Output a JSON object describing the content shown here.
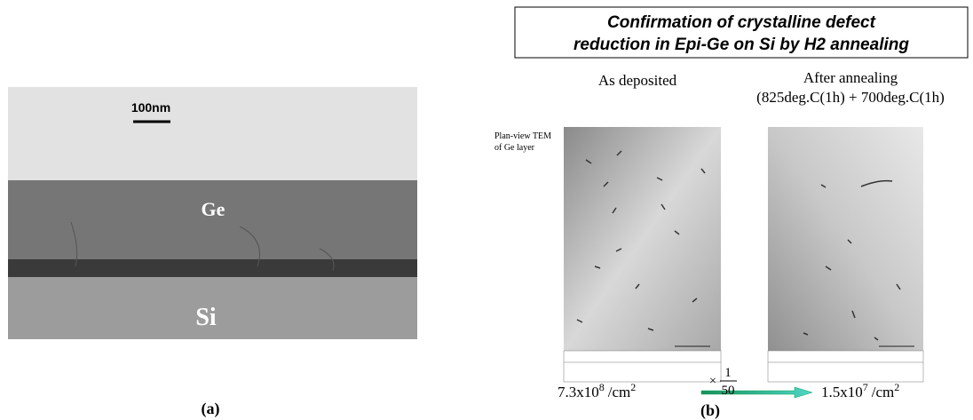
{
  "panel_a": {
    "scale_bar": "100nm",
    "layer_top": "Ge",
    "layer_bottom": "Si",
    "label": "(a)"
  },
  "panel_b": {
    "title_lines": [
      "Confirmation of crystalline defect",
      "reduction in Epi-Ge on Si by H2 annealing"
    ],
    "side_label_lines": [
      "Plan-view TEM",
      "of Ge layer"
    ],
    "columns": [
      {
        "heading": "As deposited",
        "density": {
          "mantissa": "7.3x10",
          "exponent": "8",
          "unit": "/cm",
          "unit_exponent": "2"
        }
      },
      {
        "heading": "After annealing",
        "subheading": "(825deg.C(1h) + 700deg.C(1h)",
        "density": {
          "mantissa": "1.5x10",
          "exponent": "7",
          "unit": "/cm",
          "unit_exponent": "2"
        }
      }
    ],
    "factor": {
      "symbol": "×",
      "numerator": "1",
      "denominator": "50"
    },
    "label": "(b)"
  }
}
